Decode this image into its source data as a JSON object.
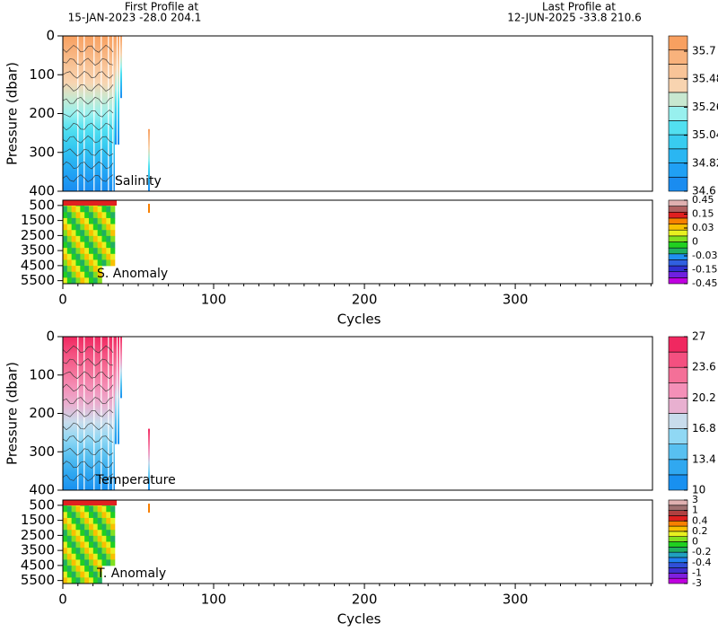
{
  "header": {
    "first_label": "First Profile at",
    "first_value": "15-JAN-2023   -28.0  204.1",
    "last_label": "Last Profile at",
    "last_value": "12-JUN-2025   -33.8  210.6"
  },
  "chart_data": [
    {
      "type": "contour",
      "label": "Salinity",
      "ylabel": "Pressure (dbar)",
      "ylim": [
        0,
        400
      ],
      "y_reversed": true,
      "yticks": [
        0,
        100,
        200,
        300,
        400
      ],
      "xlim": [
        0,
        391
      ],
      "colorbar": {
        "scale": "linear",
        "clim": [
          34.6,
          35.82
        ],
        "levels": [
          34.6,
          34.82,
          35.04,
          35.26,
          35.48,
          35.7
        ],
        "colors": [
          "#1a8cf0",
          "#20a0f4",
          "#2ab6f2",
          "#38ccf0",
          "#52e0f0",
          "#98f0ee",
          "#c8e8d0",
          "#f8d4b0",
          "#f8c498",
          "#f8b27c",
          "#f8a060"
        ]
      }
    },
    {
      "type": "anomaly",
      "label": "S. Anomaly",
      "xlabel": "Cycles",
      "ylim": [
        150,
        5700
      ],
      "y_reversed": true,
      "yticks": [
        500,
        1500,
        2500,
        3500,
        4500,
        5500
      ],
      "xlim": [
        0,
        391
      ],
      "xticks": [
        0,
        100,
        200,
        300
      ],
      "colorbar": {
        "scale": "index",
        "levels": [
          -0.45,
          -0.15,
          -0.03,
          0,
          0.03,
          0.15,
          0.45
        ],
        "colors": [
          "#c000e0",
          "#7020e0",
          "#3030d0",
          "#3060e0",
          "#2090f0",
          "#20b060",
          "#20d020",
          "#80e020",
          "#e8f020",
          "#f8c000",
          "#f88000",
          "#e02020",
          "#b06060",
          "#e0b0b0"
        ]
      }
    },
    {
      "type": "contour",
      "label": "Temperature",
      "ylabel": "Pressure (dbar)",
      "ylim": [
        0,
        400
      ],
      "y_reversed": true,
      "yticks": [
        0,
        100,
        200,
        300,
        400
      ],
      "xlim": [
        0,
        391
      ],
      "colorbar": {
        "scale": "linear",
        "clim": [
          10,
          27
        ],
        "levels": [
          10,
          13.4,
          16.8,
          20.2,
          23.6,
          27
        ],
        "colors": [
          "#1890f0",
          "#30a8f0",
          "#58c0f0",
          "#90d8f4",
          "#c8dcec",
          "#e8b0d0",
          "#f490b8",
          "#f47098",
          "#f45080",
          "#f02860"
        ]
      }
    },
    {
      "type": "anomaly",
      "label": "T. Anomaly",
      "xlabel": "Cycles",
      "ylim": [
        150,
        5700
      ],
      "y_reversed": true,
      "yticks": [
        500,
        1500,
        2500,
        3500,
        4500,
        5500
      ],
      "xlim": [
        0,
        391
      ],
      "xticks": [
        0,
        100,
        200,
        300
      ],
      "colorbar": {
        "scale": "index",
        "levels": [
          -3,
          -1,
          -0.4,
          -0.2,
          0,
          0.2,
          0.4,
          1,
          3
        ],
        "colors": [
          "#c000e0",
          "#8020e0",
          "#4030d0",
          "#3050d8",
          "#2080f0",
          "#20a0c0",
          "#20b060",
          "#20d020",
          "#80e020",
          "#e8f020",
          "#f8c000",
          "#f88000",
          "#e02020",
          "#b04040",
          "#a07070",
          "#e0b0b0"
        ]
      }
    }
  ]
}
